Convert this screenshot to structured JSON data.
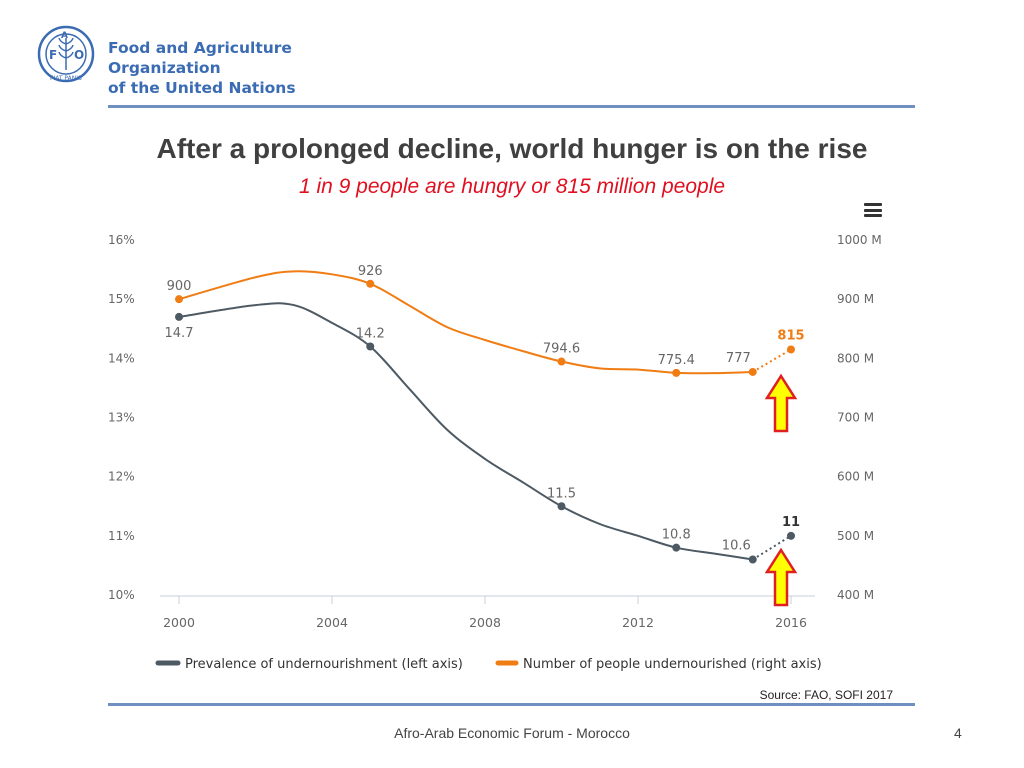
{
  "header": {
    "org_line1": "Food and Agriculture Organization",
    "org_line2": "of the United Nations",
    "logo_letters": [
      "F",
      "A",
      "O"
    ],
    "logo_motto": "FIAT PANIS"
  },
  "slide": {
    "title": "After a prolonged decline, world hunger is on the rise",
    "subtitle": "1 in 9 people are hungry or 815 million people",
    "source": "Source: FAO, SOFI 2017",
    "footer": "Afro-Arab Economic Forum - Morocco",
    "page_number": "4"
  },
  "colors": {
    "brand": "#3b6cb3",
    "series_prevalence": "#4d5a64",
    "series_people": "#f07c14",
    "subtitle": "#e01020",
    "arrow_fill": "#ffff00",
    "arrow_stroke": "#e02020"
  },
  "chart_data": {
    "type": "line",
    "x_ticks": [
      "2000",
      "2004",
      "2008",
      "2012",
      "2016"
    ],
    "xlim": [
      2000,
      2016
    ],
    "y_left": {
      "ticks": [
        "10%",
        "11%",
        "12%",
        "13%",
        "14%",
        "15%",
        "16%"
      ],
      "ylim": [
        10,
        16
      ]
    },
    "y_right": {
      "ticks": [
        "400 M",
        "500 M",
        "600 M",
        "700 M",
        "800 M",
        "900 M",
        "1000 M"
      ],
      "ylim": [
        400,
        1000
      ]
    },
    "series": [
      {
        "name": "Prevalence of undernourishment (left axis)",
        "axis": "left",
        "x": [
          2000,
          2002,
          2003,
          2004,
          2005,
          2006,
          2007,
          2008,
          2009,
          2010,
          2011,
          2012,
          2013,
          2014,
          2015
        ],
        "values": [
          14.7,
          14.9,
          14.9,
          14.6,
          14.2,
          13.5,
          12.8,
          12.3,
          11.9,
          11.5,
          11.2,
          11.0,
          10.8,
          10.7,
          10.6
        ],
        "labels": [
          {
            "x": 2000,
            "y": 14.7,
            "text": "14.7",
            "pos": "below"
          },
          {
            "x": 2005,
            "y": 14.2,
            "text": "14.2",
            "pos": "above"
          },
          {
            "x": 2010,
            "y": 11.5,
            "text": "11.5",
            "pos": "above"
          },
          {
            "x": 2013,
            "y": 10.8,
            "text": "10.8",
            "pos": "above"
          },
          {
            "x": 2015,
            "y": 10.6,
            "text": "10.6",
            "pos": "above-left"
          }
        ],
        "projection": {
          "x": [
            2015,
            2016
          ],
          "values": [
            10.6,
            11
          ],
          "label": "11"
        }
      },
      {
        "name": "Number of people undernourished (right axis)",
        "axis": "right",
        "x": [
          2000,
          2002,
          2003,
          2004,
          2005,
          2006,
          2007,
          2008,
          2009,
          2010,
          2011,
          2012,
          2013,
          2014,
          2015
        ],
        "values": [
          900,
          937,
          947,
          942,
          926,
          890,
          853,
          831,
          812,
          794.6,
          783,
          781,
          775.4,
          775,
          777
        ],
        "labels": [
          {
            "x": 2000,
            "y": 900,
            "text": "900",
            "pos": "above"
          },
          {
            "x": 2005,
            "y": 926,
            "text": "926",
            "pos": "above"
          },
          {
            "x": 2010,
            "y": 794.6,
            "text": "794.6",
            "pos": "above"
          },
          {
            "x": 2013,
            "y": 775.4,
            "text": "775.4",
            "pos": "above"
          },
          {
            "x": 2015,
            "y": 777,
            "text": "777",
            "pos": "above-left"
          }
        ],
        "projection": {
          "x": [
            2015,
            2016
          ],
          "values": [
            777,
            815
          ],
          "label": "815"
        }
      }
    ],
    "markers_at": [
      2000,
      2005,
      2010,
      2013,
      2015,
      2016
    ],
    "legend_position": "bottom-left",
    "annotations": [
      "up-arrow near 2016 on people series",
      "up-arrow near 2016 on prevalence series"
    ]
  }
}
